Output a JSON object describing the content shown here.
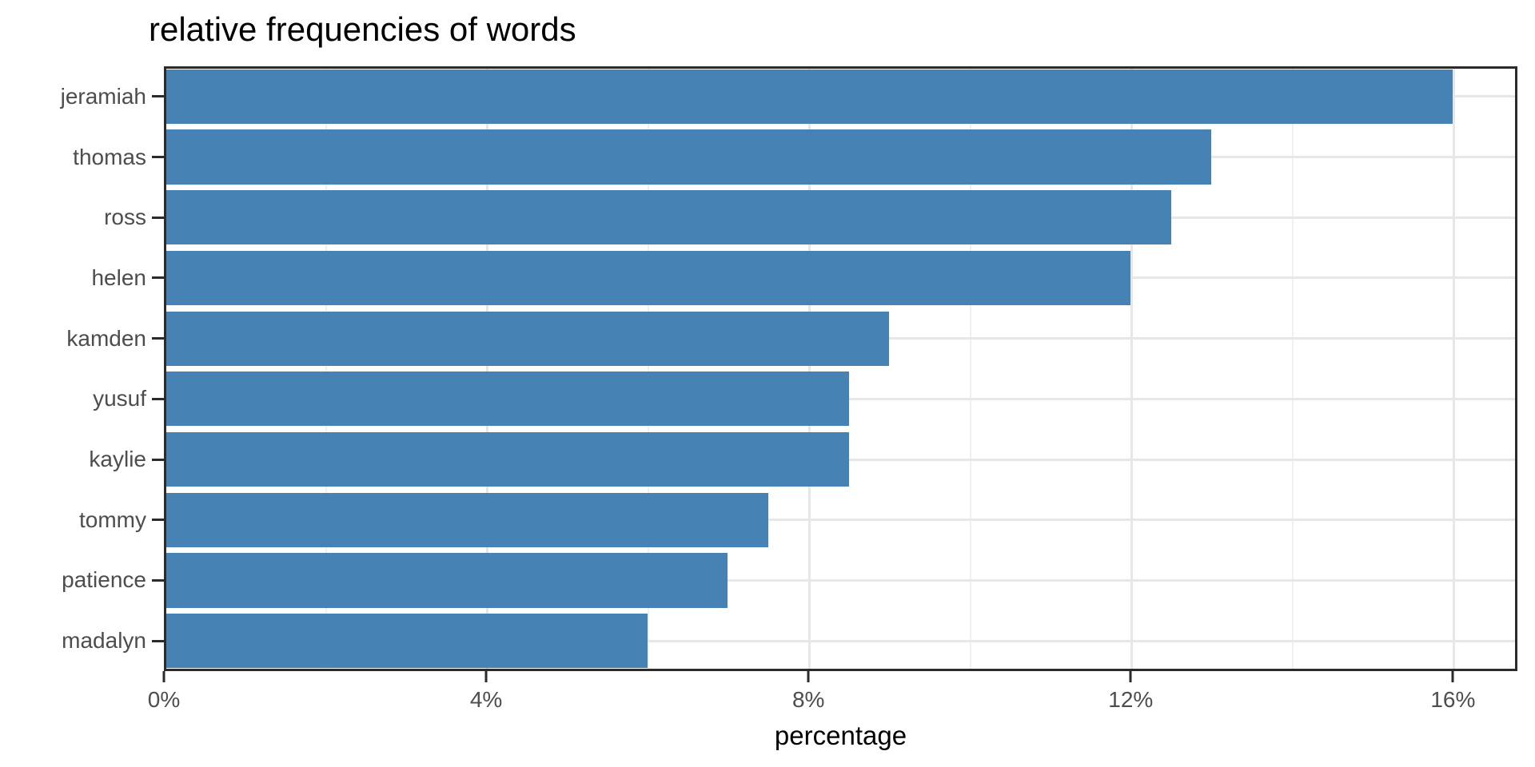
{
  "title": "relative frequencies of words",
  "x_axis": {
    "title": "percentage",
    "tick_labels": [
      "0%",
      "4%",
      "8%",
      "12%",
      "16%"
    ],
    "tick_values": [
      0,
      4,
      8,
      12,
      16
    ]
  },
  "chart_data": {
    "type": "bar",
    "orientation": "horizontal",
    "title": "relative frequencies of words",
    "xlabel": "percentage",
    "ylabel": "",
    "categories": [
      "jeramiah",
      "thomas",
      "ross",
      "helen",
      "kamden",
      "yusuf",
      "kaylie",
      "tommy",
      "patience",
      "madalyn"
    ],
    "values": [
      16.0,
      13.0,
      12.5,
      12.0,
      9.0,
      8.5,
      8.5,
      7.5,
      7.0,
      6.0
    ],
    "unit": "%",
    "xlim": [
      0,
      16.8
    ],
    "x_major_ticks": [
      0,
      4,
      8,
      12,
      16
    ],
    "x_minor_gridlines": [
      2,
      6,
      10,
      14
    ],
    "x_major_gridlines": [
      4,
      8,
      12,
      16
    ],
    "grid": true,
    "legend": false,
    "bar_color": "#4682b4"
  },
  "colors": {
    "bar": "#4682b4",
    "panel_border": "#2b2b2b",
    "gridline_major": "#e7e7e7",
    "gridline_minor": "#f0f0f0",
    "axis_text": "#4d4d4d",
    "title_text": "#000000",
    "background": "#ffffff"
  }
}
